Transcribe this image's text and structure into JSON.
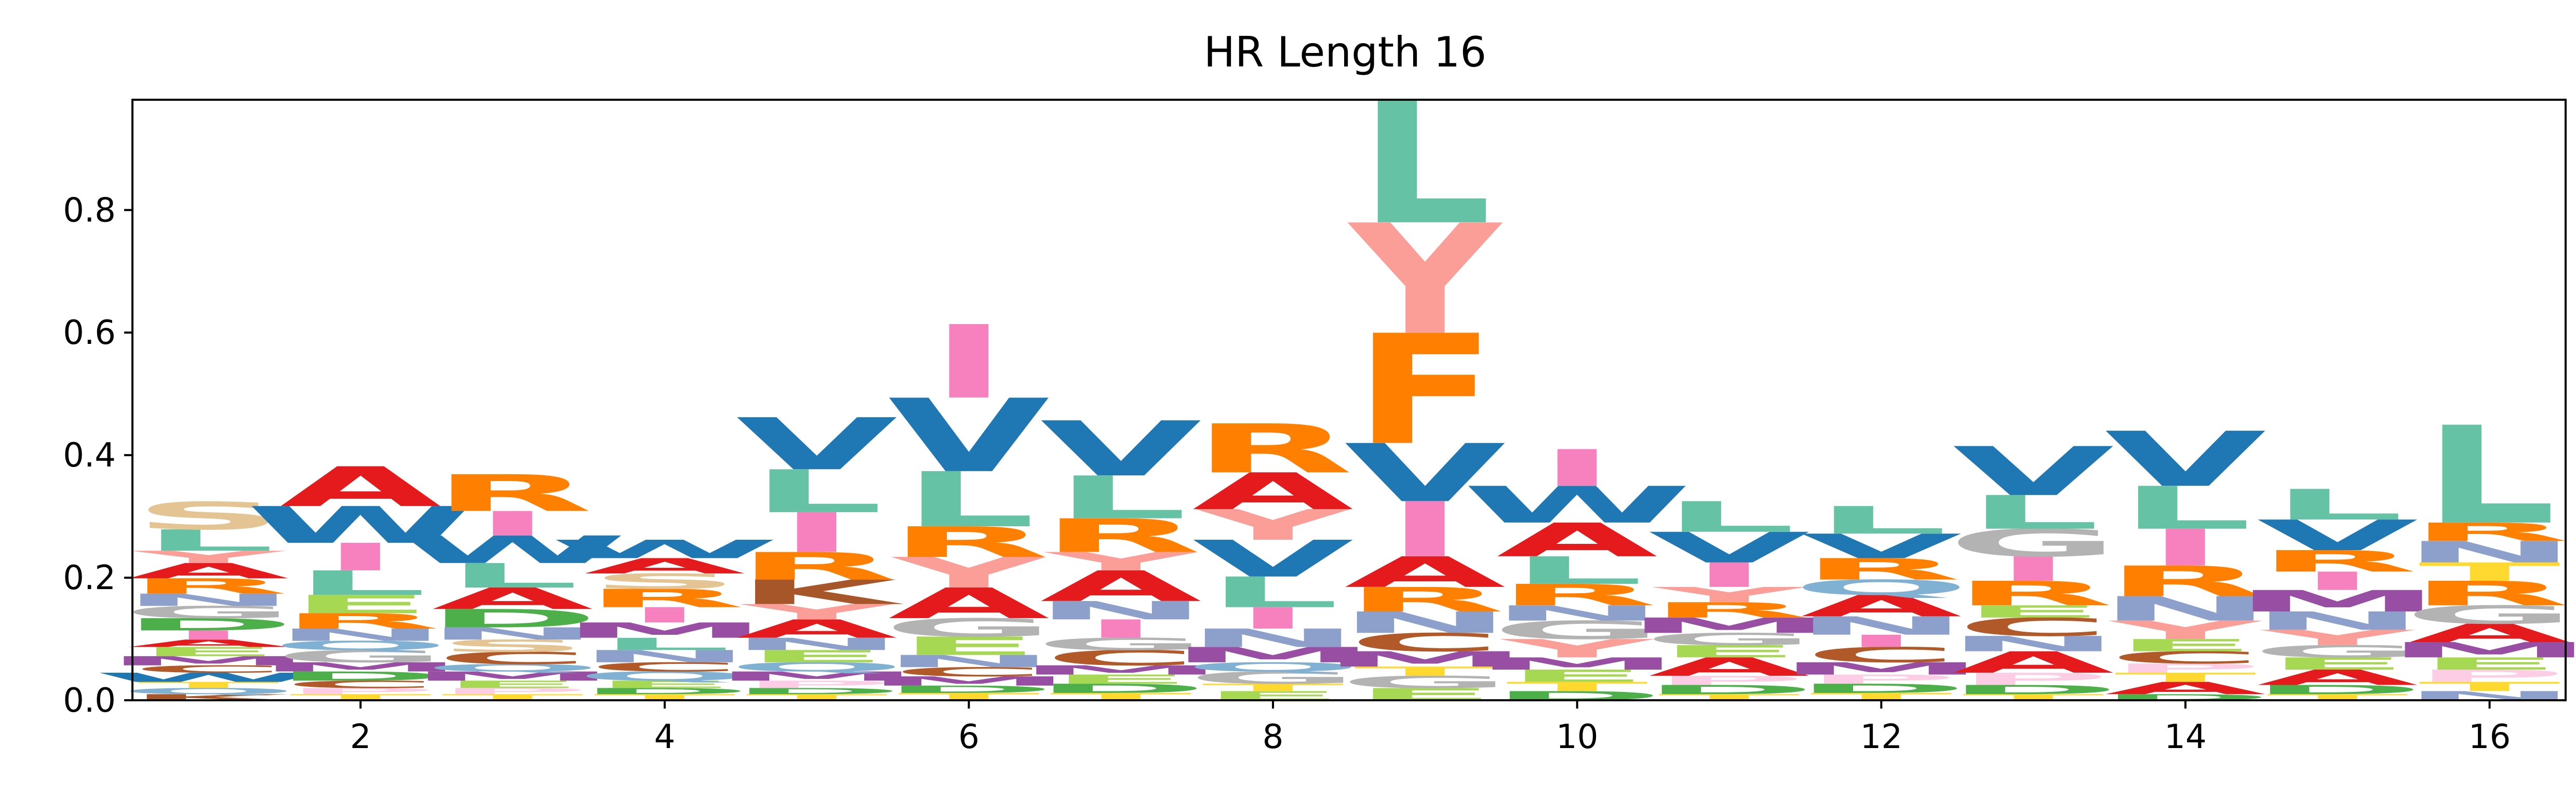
{
  "chart_data": {
    "type": "bar",
    "title": "HR Length 16",
    "xlabel": "",
    "ylabel": "",
    "xlim": [
      0.5,
      16.5
    ],
    "ylim": [
      0,
      0.98
    ],
    "grid": false,
    "x_ticks": [
      2,
      4,
      6,
      8,
      10,
      12,
      14,
      16
    ],
    "y_ticks": [
      0.0,
      0.2,
      0.4,
      0.6,
      0.8
    ],
    "y_tick_labels": [
      "0.0",
      "0.2",
      "0.4",
      "0.6",
      "0.8"
    ],
    "letter_colors": {
      "L": "#66c2a5",
      "Y": "#fc9e98",
      "F": "#ff7f00",
      "V": "#1f78b4",
      "W": "#1f78b4",
      "A": "#e41a1c",
      "I": "#f781bf",
      "S": "#e5c494",
      "R": "#ff7f00",
      "K": "#a65628",
      "M": "#984ea3",
      "N": "#8da0cb",
      "G": "#b3b3b3",
      "D": "#4daf4a",
      "E": "#a6d854",
      "T": "#ffd92f",
      "Q": "#80b1d3",
      "C": "#b15928",
      "P": "#fccde5",
      "H": "#d95f02"
    },
    "positions": [
      {
        "x": 1,
        "letters": [
          [
            "K",
            0.01
          ],
          [
            "Q",
            0.01
          ],
          [
            "T",
            0.01
          ],
          [
            "W",
            0.015
          ],
          [
            "C",
            0.012
          ],
          [
            "M",
            0.015
          ],
          [
            "E",
            0.015
          ],
          [
            "A",
            0.012
          ],
          [
            "I",
            0.015
          ],
          [
            "D",
            0.02
          ],
          [
            "G",
            0.02
          ],
          [
            "N",
            0.02
          ],
          [
            "R",
            0.025
          ],
          [
            "A",
            0.025
          ],
          [
            "Y",
            0.02
          ],
          [
            "L",
            0.035
          ],
          [
            "S",
            0.045
          ]
        ]
      },
      {
        "x": 2,
        "letters": [
          [
            "T",
            0.01
          ],
          [
            "P",
            0.01
          ],
          [
            "C",
            0.012
          ],
          [
            "D",
            0.015
          ],
          [
            "M",
            0.015
          ],
          [
            "G",
            0.02
          ],
          [
            "Q",
            0.015
          ],
          [
            "N",
            0.02
          ],
          [
            "R",
            0.025
          ],
          [
            "E",
            0.03
          ],
          [
            "L",
            0.04
          ],
          [
            "I",
            0.045
          ],
          [
            "W",
            0.06
          ],
          [
            "A",
            0.065
          ]
        ]
      },
      {
        "x": 3,
        "letters": [
          [
            "T",
            0.01
          ],
          [
            "P",
            0.01
          ],
          [
            "E",
            0.012
          ],
          [
            "M",
            0.015
          ],
          [
            "Q",
            0.012
          ],
          [
            "C",
            0.02
          ],
          [
            "S",
            0.02
          ],
          [
            "N",
            0.02
          ],
          [
            "D",
            0.03
          ],
          [
            "A",
            0.035
          ],
          [
            "L",
            0.04
          ],
          [
            "W",
            0.045
          ],
          [
            "I",
            0.04
          ],
          [
            "R",
            0.06
          ]
        ]
      },
      {
        "x": 4,
        "letters": [
          [
            "T",
            0.01
          ],
          [
            "D",
            0.01
          ],
          [
            "E",
            0.012
          ],
          [
            "Q",
            0.015
          ],
          [
            "C",
            0.015
          ],
          [
            "N",
            0.02
          ],
          [
            "L",
            0.02
          ],
          [
            "M",
            0.025
          ],
          [
            "I",
            0.025
          ],
          [
            "R",
            0.03
          ],
          [
            "S",
            0.025
          ],
          [
            "A",
            0.025
          ],
          [
            "W",
            0.03
          ]
        ]
      },
      {
        "x": 5,
        "letters": [
          [
            "T",
            0.01
          ],
          [
            "D",
            0.01
          ],
          [
            "P",
            0.012
          ],
          [
            "M",
            0.015
          ],
          [
            "Q",
            0.015
          ],
          [
            "E",
            0.02
          ],
          [
            "N",
            0.02
          ],
          [
            "A",
            0.03
          ],
          [
            "Y",
            0.025
          ],
          [
            "K",
            0.04
          ],
          [
            "R",
            0.045
          ],
          [
            "I",
            0.065
          ],
          [
            "L",
            0.07
          ],
          [
            "V",
            0.085
          ]
        ]
      },
      {
        "x": 6,
        "letters": [
          [
            "T",
            0.012
          ],
          [
            "D",
            0.012
          ],
          [
            "M",
            0.015
          ],
          [
            "C",
            0.015
          ],
          [
            "N",
            0.02
          ],
          [
            "E",
            0.03
          ],
          [
            "G",
            0.03
          ],
          [
            "A",
            0.05
          ],
          [
            "Y",
            0.05
          ],
          [
            "R",
            0.05
          ],
          [
            "L",
            0.09
          ],
          [
            "V",
            0.12
          ],
          [
            "I",
            0.12
          ]
        ]
      },
      {
        "x": 7,
        "letters": [
          [
            "T",
            0.012
          ],
          [
            "D",
            0.015
          ],
          [
            "E",
            0.015
          ],
          [
            "M",
            0.015
          ],
          [
            "C",
            0.025
          ],
          [
            "G",
            0.02
          ],
          [
            "I",
            0.03
          ],
          [
            "N",
            0.03
          ],
          [
            "A",
            0.05
          ],
          [
            "Y",
            0.03
          ],
          [
            "R",
            0.055
          ],
          [
            "L",
            0.07
          ],
          [
            "V",
            0.09
          ]
        ]
      },
      {
        "x": 8,
        "letters": [
          [
            "E",
            0.015
          ],
          [
            "T",
            0.012
          ],
          [
            "G",
            0.02
          ],
          [
            "Q",
            0.015
          ],
          [
            "M",
            0.025
          ],
          [
            "N",
            0.03
          ],
          [
            "I",
            0.035
          ],
          [
            "L",
            0.05
          ],
          [
            "V",
            0.06
          ],
          [
            "Y",
            0.05
          ],
          [
            "A",
            0.06
          ],
          [
            "R",
            0.08
          ]
        ]
      },
      {
        "x": 9,
        "letters": [
          [
            "E",
            0.02
          ],
          [
            "G",
            0.02
          ],
          [
            "T",
            0.015
          ],
          [
            "M",
            0.025
          ],
          [
            "C",
            0.03
          ],
          [
            "N",
            0.035
          ],
          [
            "R",
            0.04
          ],
          [
            "A",
            0.05
          ],
          [
            "I",
            0.09
          ],
          [
            "V",
            0.095
          ],
          [
            "F",
            0.18
          ],
          [
            "Y",
            0.18
          ],
          [
            "L",
            0.2
          ]
        ]
      },
      {
        "x": 10,
        "letters": [
          [
            "D",
            0.015
          ],
          [
            "T",
            0.015
          ],
          [
            "E",
            0.02
          ],
          [
            "M",
            0.02
          ],
          [
            "Y",
            0.03
          ],
          [
            "G",
            0.03
          ],
          [
            "N",
            0.025
          ],
          [
            "R",
            0.035
          ],
          [
            "L",
            0.045
          ],
          [
            "A",
            0.055
          ],
          [
            "W",
            0.06
          ],
          [
            "I",
            0.06
          ]
        ]
      },
      {
        "x": 11,
        "letters": [
          [
            "T",
            0.01
          ],
          [
            "D",
            0.015
          ],
          [
            "P",
            0.015
          ],
          [
            "A",
            0.03
          ],
          [
            "E",
            0.02
          ],
          [
            "G",
            0.02
          ],
          [
            "M",
            0.025
          ],
          [
            "R",
            0.025
          ],
          [
            "Y",
            0.025
          ],
          [
            "I",
            0.04
          ],
          [
            "V",
            0.05
          ],
          [
            "L",
            0.05
          ]
        ]
      },
      {
        "x": 12,
        "letters": [
          [
            "T",
            0.012
          ],
          [
            "D",
            0.015
          ],
          [
            "P",
            0.015
          ],
          [
            "M",
            0.02
          ],
          [
            "C",
            0.025
          ],
          [
            "I",
            0.02
          ],
          [
            "N",
            0.03
          ],
          [
            "A",
            0.035
          ],
          [
            "Q",
            0.025
          ],
          [
            "R",
            0.035
          ],
          [
            "V",
            0.04
          ],
          [
            "L",
            0.045
          ]
        ]
      },
      {
        "x": 13,
        "letters": [
          [
            "T",
            0.01
          ],
          [
            "D",
            0.015
          ],
          [
            "P",
            0.02
          ],
          [
            "A",
            0.035
          ],
          [
            "N",
            0.025
          ],
          [
            "C",
            0.03
          ],
          [
            "E",
            0.02
          ],
          [
            "R",
            0.04
          ],
          [
            "I",
            0.04
          ],
          [
            "G",
            0.045
          ],
          [
            "L",
            0.055
          ],
          [
            "V",
            0.08
          ]
        ]
      },
      {
        "x": 14,
        "letters": [
          [
            "D",
            0.01
          ],
          [
            "A",
            0.02
          ],
          [
            "T",
            0.015
          ],
          [
            "P",
            0.015
          ],
          [
            "C",
            0.02
          ],
          [
            "E",
            0.02
          ],
          [
            "Y",
            0.03
          ],
          [
            "N",
            0.04
          ],
          [
            "R",
            0.05
          ],
          [
            "I",
            0.06
          ],
          [
            "L",
            0.07
          ],
          [
            "V",
            0.09
          ]
        ]
      },
      {
        "x": 15,
        "letters": [
          [
            "T",
            0.01
          ],
          [
            "D",
            0.015
          ],
          [
            "A",
            0.025
          ],
          [
            "E",
            0.02
          ],
          [
            "G",
            0.02
          ],
          [
            "Y",
            0.025
          ],
          [
            "N",
            0.03
          ],
          [
            "M",
            0.035
          ],
          [
            "I",
            0.03
          ],
          [
            "R",
            0.035
          ],
          [
            "V",
            0.05
          ],
          [
            "L",
            0.05
          ]
        ]
      },
      {
        "x": 16,
        "letters": [
          [
            "N",
            0.015
          ],
          [
            "T",
            0.015
          ],
          [
            "P",
            0.02
          ],
          [
            "E",
            0.02
          ],
          [
            "M",
            0.025
          ],
          [
            "A",
            0.03
          ],
          [
            "G",
            0.03
          ],
          [
            "R",
            0.04
          ],
          [
            "T",
            0.03
          ],
          [
            "N",
            0.035
          ],
          [
            "R",
            0.03
          ],
          [
            "L",
            0.16
          ]
        ]
      }
    ]
  }
}
